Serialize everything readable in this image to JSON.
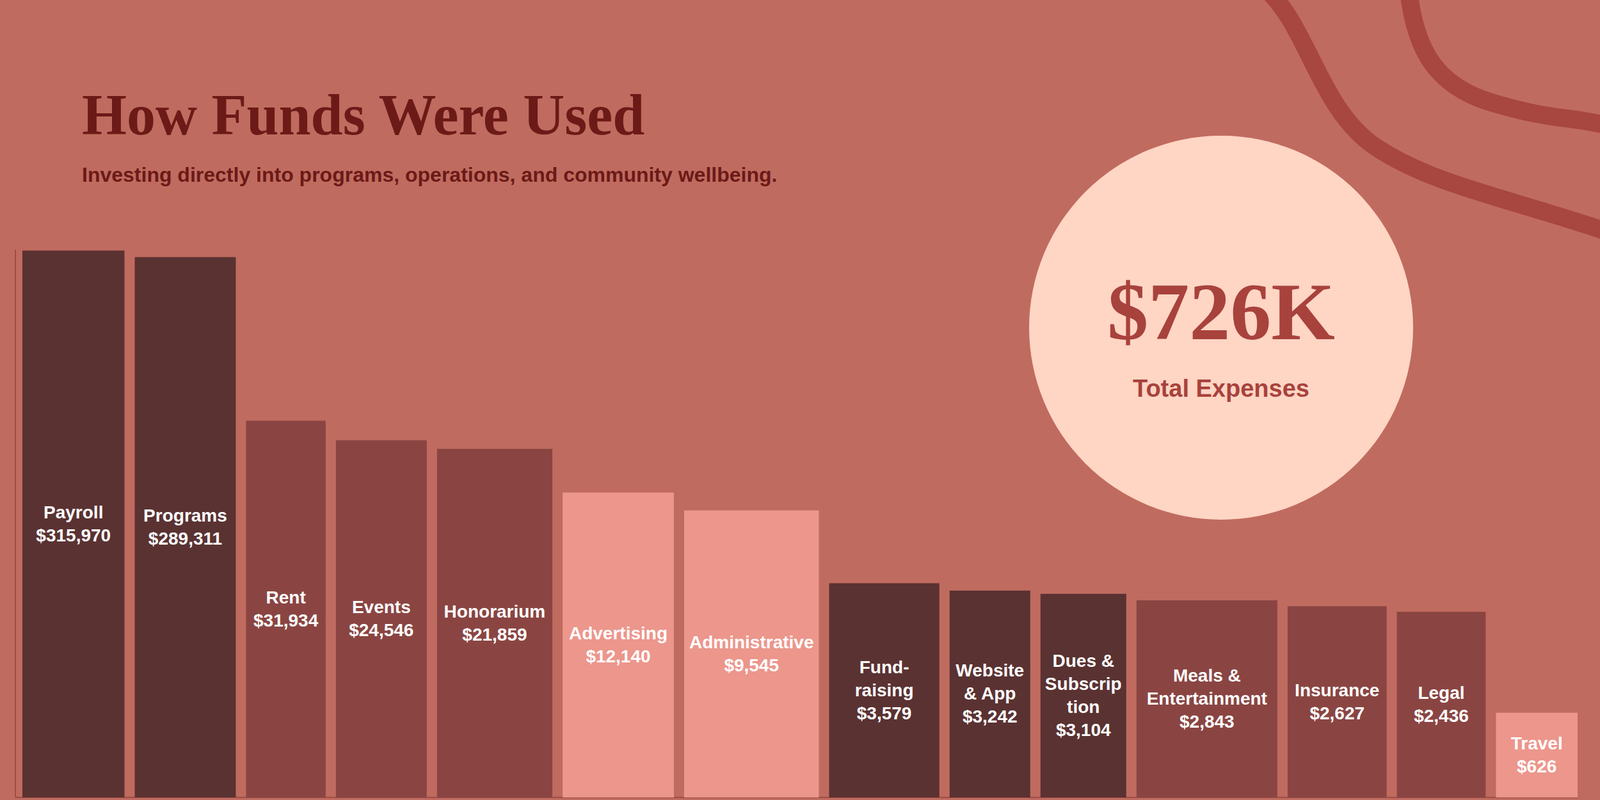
{
  "chart_data": {
    "type": "bar",
    "title": "How Funds Were Used",
    "subtitle": "Investing directly into programs, operations, and community wellbeing.",
    "categories": [
      "Payroll",
      "Programs",
      "Rent",
      "Events",
      "Honorarium",
      "Advertising",
      "Administrative",
      "Fund-raising",
      "Website & App",
      "Dues & Subscription",
      "Meals & Entertainment",
      "Insurance",
      "Legal",
      "Travel"
    ],
    "values": [
      315970,
      289311,
      31934,
      24546,
      21859,
      12140,
      9545,
      3579,
      3242,
      3104,
      2843,
      2627,
      2436,
      626
    ],
    "value_labels": [
      "$315,970",
      "$289,311",
      "$31,934",
      "$24,546",
      "$21,859",
      "$12,140",
      "$9,545",
      "$3,579",
      "$3,242",
      "$3,104",
      "$2,843",
      "$2,627",
      "$2,436",
      "$626"
    ],
    "colors": [
      "#5a3232",
      "#5a3232",
      "#8a4542",
      "#8a4542",
      "#8a4542",
      "#ec968c",
      "#ec968c",
      "#5a3232",
      "#5a3232",
      "#5a3232",
      "#8a4542",
      "#8a4542",
      "#8a4542",
      "#ec968c"
    ],
    "data_labels": true,
    "log": "y",
    "ylim": [
      200,
      320000
    ],
    "tick_labels": false,
    "annotations": [
      {
        "text": "$726K",
        "caption": "Total Expenses"
      }
    ]
  }
}
